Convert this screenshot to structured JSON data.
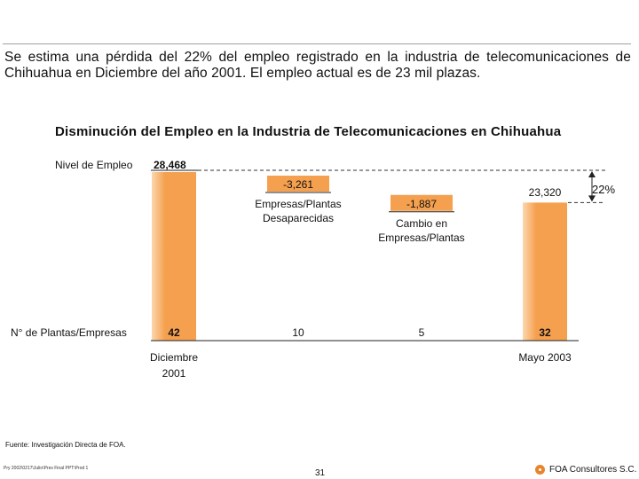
{
  "header": {
    "headline": "Se estima una pérdida del 22% del empleo registrado en la industria de telecomunicaciones de Chihuahua en Diciembre del año 2001. El empleo actual es de 23 mil plazas."
  },
  "colors": {
    "bar": "#f5a04f",
    "bar_light": "#fbd7ae",
    "text": "#111111"
  },
  "chart_data": {
    "type": "bar",
    "subtype": "waterfall",
    "title": "Disminución del Empleo en la Industria de Telecomunicaciones en Chihuahua",
    "ylabel": "Nivel de Empleo",
    "row_label": "N° de Plantas/Empresas",
    "ylim": [
      0,
      28468
    ],
    "steps": [
      {
        "kind": "total",
        "value": 28468,
        "label": "28,468",
        "plants": "42",
        "category": "Diciembre 2001"
      },
      {
        "kind": "delta",
        "value": -3261,
        "label": "-3,261",
        "plants": "10",
        "caption": "Empresas/Plantas Desaparecidas"
      },
      {
        "kind": "delta",
        "value": -1887,
        "label": "-1,887",
        "plants": "5",
        "caption": "Cambio en Empresas/Plantas"
      },
      {
        "kind": "total",
        "value": 23320,
        "label": "23,320",
        "plants": "32",
        "category": "Mayo 2003"
      }
    ],
    "annotation": "22%"
  },
  "footer": {
    "source": "Fuente: Investigación Directa de FOA.",
    "path": "Pry 2002\\0217\\Julio\\Pres Final PPT\\Prod 1",
    "page": "31",
    "brand": "FOA Consultores S.C."
  }
}
